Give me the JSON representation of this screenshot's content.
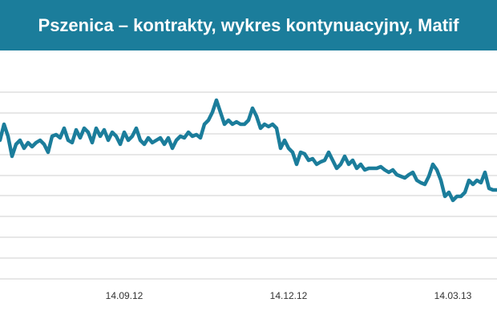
{
  "chart_data": {
    "type": "line",
    "title": "Pszenica – kontrakty, wykres kontynuacyjny, Matif",
    "color": "#1b7d9b",
    "values": [
      225,
      245,
      230,
      205,
      220,
      225,
      215,
      222,
      217,
      222,
      225,
      220,
      210,
      230,
      232,
      228,
      240,
      225,
      222,
      238,
      228,
      240,
      235,
      222,
      240,
      230,
      238,
      225,
      235,
      230,
      220,
      235,
      225,
      230,
      240,
      225,
      220,
      228,
      222,
      225,
      228,
      220,
      228,
      215,
      225,
      230,
      228,
      235,
      230,
      232,
      228,
      245,
      250,
      260,
      275,
      260,
      245,
      250,
      245,
      248,
      245,
      245,
      250,
      265,
      255,
      240,
      245,
      242,
      245,
      240,
      215,
      225,
      215,
      210,
      195,
      210,
      208,
      200,
      202,
      195,
      198,
      200,
      210,
      200,
      190,
      195,
      205,
      195,
      200,
      190,
      195,
      188,
      190,
      190,
      190,
      192,
      188,
      185,
      188,
      182,
      180,
      178,
      182,
      185,
      175,
      172,
      170,
      180,
      195,
      188,
      175,
      155,
      160,
      150,
      155,
      155,
      160,
      175,
      170,
      175,
      172,
      185,
      165,
      163,
      163
    ],
    "xlim": [
      0,
      124
    ],
    "xticks": [
      {
        "value": 31,
        "label": "14.09.12"
      },
      {
        "value": 72,
        "label": "14.12.12"
      },
      {
        "value": 113,
        "label": "14.03.13"
      }
    ],
    "ylim": [
      0,
      337
    ],
    "yticks": [
      52,
      78,
      104,
      130,
      156,
      181,
      207,
      233,
      259,
      285
    ],
    "grid": true
  }
}
